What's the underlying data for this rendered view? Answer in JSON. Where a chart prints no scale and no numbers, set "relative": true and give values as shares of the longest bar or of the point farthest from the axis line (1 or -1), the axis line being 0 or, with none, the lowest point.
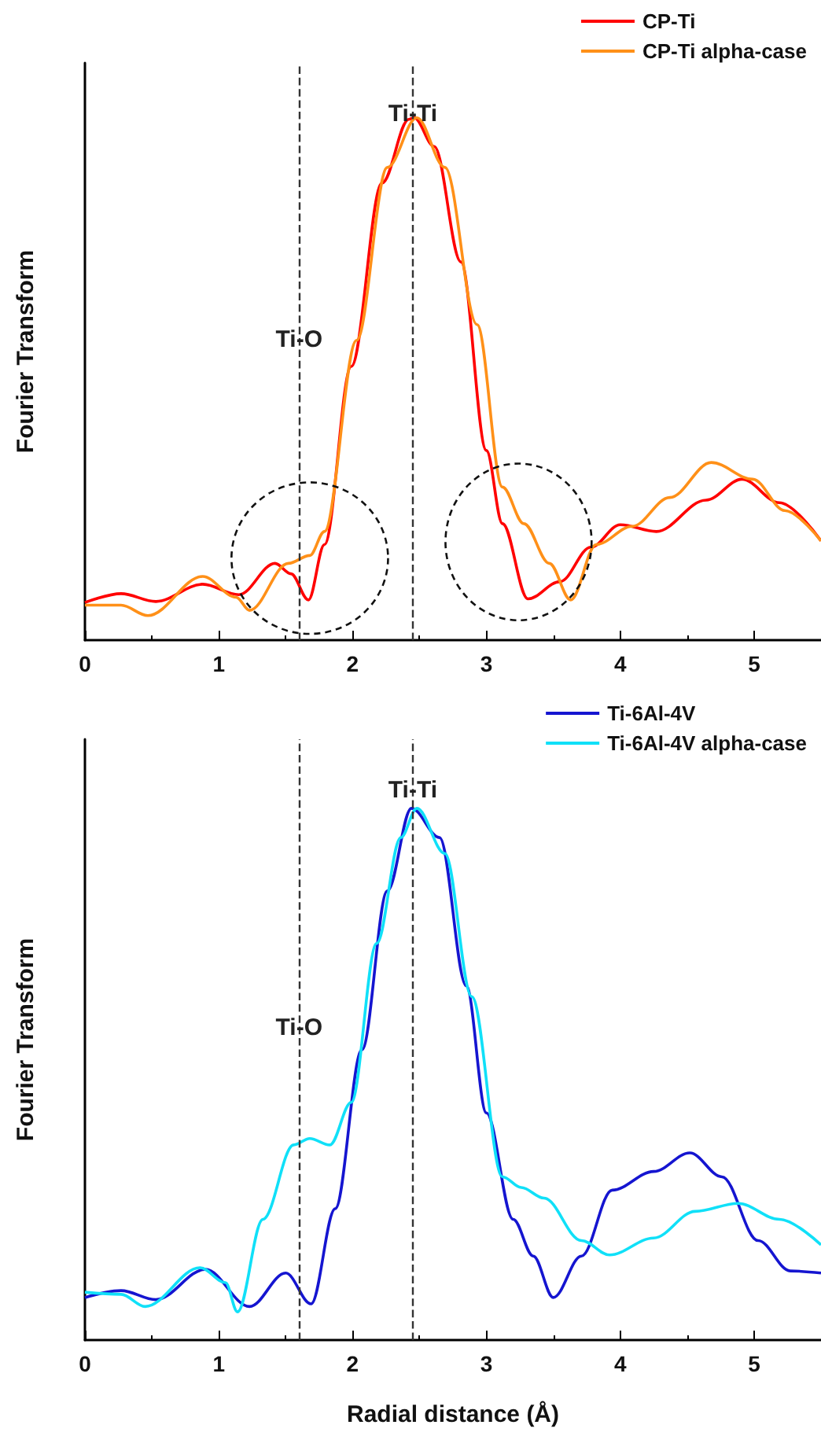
{
  "chart_data": [
    {
      "type": "line",
      "ylabel": "Fourier Transform",
      "relative": true,
      "xlim": [
        0,
        5.5
      ],
      "xticks": [
        0,
        1,
        2,
        3,
        4,
        5
      ],
      "grid": false,
      "legend": "top right",
      "marker": "none",
      "line_style": "solid",
      "series": [
        {
          "name": "CP-Ti",
          "color": "#ff0000",
          "x": [
            0,
            0.27,
            0.53,
            0.88,
            1.15,
            1.42,
            1.54,
            1.67,
            1.79,
            1.99,
            2.22,
            2.42,
            2.46,
            2.61,
            2.81,
            3.0,
            3.12,
            3.31,
            3.55,
            3.78,
            4.0,
            4.27,
            4.64,
            4.91,
            5.19,
            5.5
          ],
          "values": [
            0.072,
            0.089,
            0.074,
            0.107,
            0.087,
            0.147,
            0.127,
            0.077,
            0.183,
            0.524,
            0.875,
            0.997,
            1,
            0.945,
            0.724,
            0.363,
            0.223,
            0.079,
            0.112,
            0.178,
            0.221,
            0.208,
            0.268,
            0.308,
            0.263,
            0.19
          ]
        },
        {
          "name": "CP-Ti alpha-case",
          "color": "#ff9018",
          "x": [
            0,
            0.27,
            0.47,
            0.88,
            1.13,
            1.23,
            1.52,
            1.68,
            1.79,
            2.03,
            2.26,
            2.48,
            2.69,
            2.93,
            3.12,
            3.28,
            3.47,
            3.63,
            3.82,
            4.09,
            4.37,
            4.68,
            4.99,
            5.23,
            5.5
          ],
          "values": [
            0.067,
            0.067,
            0.047,
            0.122,
            0.082,
            0.057,
            0.147,
            0.162,
            0.208,
            0.574,
            0.905,
            1,
            0.905,
            0.604,
            0.293,
            0.223,
            0.147,
            0.077,
            0.183,
            0.218,
            0.273,
            0.34,
            0.308,
            0.248,
            0.19
          ]
        }
      ],
      "ref_lines": [
        {
          "axis": "x",
          "value": 1.6,
          "label": "Ti-O",
          "line_style": "dashed",
          "color": "#333333"
        },
        {
          "axis": "x",
          "value": 2.45,
          "label": "Ti-Ti",
          "line_style": "dashed",
          "color": "#333333"
        }
      ]
    },
    {
      "type": "line",
      "xlabel": "Radial distance (Å)",
      "ylabel": "Fourier Transform",
      "relative": true,
      "xlim": [
        0,
        5.5
      ],
      "xticks": [
        0,
        1,
        2,
        3,
        4,
        5
      ],
      "grid": false,
      "legend": "top right",
      "marker": "none",
      "line_style": "solid",
      "series": [
        {
          "name": "Ti-6Al-4V",
          "color": "#1515d0",
          "x": [
            0,
            0.27,
            0.53,
            0.9,
            1.23,
            1.5,
            1.69,
            1.87,
            2.07,
            2.26,
            2.44,
            2.65,
            2.85,
            3.0,
            3.2,
            3.35,
            3.5,
            3.71,
            3.94,
            4.25,
            4.52,
            4.76,
            5.03,
            5.27,
            5.5
          ],
          "values": [
            0.08,
            0.093,
            0.076,
            0.133,
            0.063,
            0.126,
            0.068,
            0.247,
            0.546,
            0.845,
            1,
            0.945,
            0.666,
            0.427,
            0.227,
            0.158,
            0.08,
            0.158,
            0.282,
            0.317,
            0.352,
            0.307,
            0.187,
            0.13,
            0.126
          ]
        },
        {
          "name": "Ti-6Al-4V alpha-case",
          "color": "#10e0f8",
          "x": [
            0,
            0.27,
            0.45,
            0.86,
            1.05,
            1.14,
            1.33,
            1.56,
            1.68,
            1.83,
            1.99,
            2.18,
            2.36,
            2.48,
            2.69,
            2.89,
            3.12,
            3.26,
            3.43,
            3.71,
            3.92,
            4.25,
            4.56,
            4.88,
            5.19,
            5.5
          ],
          "values": [
            0.09,
            0.086,
            0.063,
            0.136,
            0.108,
            0.053,
            0.227,
            0.367,
            0.379,
            0.367,
            0.447,
            0.746,
            0.945,
            1,
            0.915,
            0.646,
            0.307,
            0.287,
            0.267,
            0.187,
            0.16,
            0.192,
            0.242,
            0.257,
            0.227,
            0.179
          ]
        }
      ],
      "ref_lines": [
        {
          "axis": "x",
          "value": 1.6,
          "label": "Ti-O",
          "line_style": "dashed",
          "color": "#333333"
        },
        {
          "axis": "x",
          "value": 2.45,
          "label": "Ti-Ti",
          "line_style": "dashed",
          "color": "#333333"
        }
      ]
    }
  ]
}
